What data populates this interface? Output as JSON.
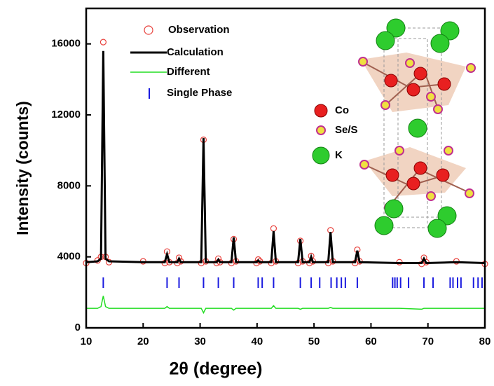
{
  "chart_data": {
    "type": "line",
    "x_label": "2θ (degree)",
    "y_label": "Intensity (counts)",
    "xlim": [
      10,
      80
    ],
    "xticks": [
      10,
      20,
      30,
      40,
      50,
      60,
      70,
      80
    ],
    "ylim": [
      0,
      18000
    ],
    "yticks": [
      0,
      4000,
      8000,
      12000,
      16000
    ],
    "x": [
      10,
      12,
      12.6,
      13.0,
      13.4,
      14,
      20,
      23.8,
      24.2,
      24.6,
      26.0,
      26.3,
      26.6,
      30.2,
      30.6,
      31.0,
      32.9,
      33.2,
      33.5,
      35.5,
      35.9,
      36.3,
      39.9,
      40.2,
      40.5,
      42.5,
      42.9,
      43.3,
      47.2,
      47.6,
      48.0,
      49.2,
      49.5,
      49.8,
      52.5,
      52.9,
      53.3,
      57.2,
      57.6,
      58.0,
      65,
      68.9,
      69.3,
      69.7,
      75,
      80
    ],
    "series": [
      {
        "name": "Observation",
        "color": "#e8413c",
        "style": "circles",
        "values": [
          3650,
          3800,
          4000,
          16100,
          4000,
          3700,
          3750,
          3650,
          4300,
          3700,
          3650,
          3950,
          3750,
          3650,
          10600,
          3750,
          3650,
          3900,
          3700,
          3650,
          5000,
          3750,
          3650,
          3850,
          3750,
          3650,
          5600,
          3750,
          3650,
          4900,
          3750,
          3650,
          4050,
          3750,
          3650,
          5500,
          3750,
          3650,
          4400,
          3750,
          3700,
          3600,
          3950,
          3700,
          3750,
          3600
        ]
      },
      {
        "name": "Calculation",
        "color": "#000000",
        "style": "line",
        "values": [
          3700,
          3750,
          3900,
          15600,
          3900,
          3750,
          3700,
          3700,
          4150,
          3700,
          3700,
          3900,
          3700,
          3700,
          10700,
          3700,
          3700,
          3850,
          3700,
          3700,
          5100,
          3700,
          3700,
          3800,
          3700,
          3700,
          5450,
          3700,
          3700,
          5000,
          3700,
          3700,
          4000,
          3700,
          3700,
          5400,
          3700,
          3700,
          4350,
          3700,
          3650,
          3650,
          3900,
          3650,
          3700,
          3650
        ]
      },
      {
        "name": "Different",
        "color": "#22dd22",
        "style": "line",
        "values": [
          1100,
          1100,
          1200,
          1800,
          1200,
          1100,
          1100,
          1100,
          1200,
          1100,
          1100,
          1100,
          1100,
          1100,
          850,
          1100,
          1100,
          1100,
          1100,
          1100,
          1000,
          1100,
          1100,
          1100,
          1100,
          1100,
          1250,
          1100,
          1100,
          1050,
          1100,
          1100,
          1100,
          1100,
          1100,
          1150,
          1100,
          1100,
          1100,
          1100,
          1100,
          1050,
          1100,
          1100,
          1100,
          1100
        ]
      }
    ],
    "phase": {
      "name": "Single Phase",
      "color": "#1a1adf",
      "positions": [
        13.0,
        24.2,
        26.3,
        30.6,
        33.2,
        35.9,
        40.2,
        40.9,
        42.9,
        47.6,
        49.5,
        51.0,
        53.0,
        54.0,
        54.8,
        55.5,
        57.6,
        63.8,
        64.2,
        64.6,
        65.2,
        66.6,
        69.3,
        70.9,
        73.9,
        74.4,
        75.2,
        75.8,
        78.0,
        78.8,
        79.5
      ]
    },
    "annotations": [
      "Co",
      "Se/S",
      "K"
    ]
  }
}
